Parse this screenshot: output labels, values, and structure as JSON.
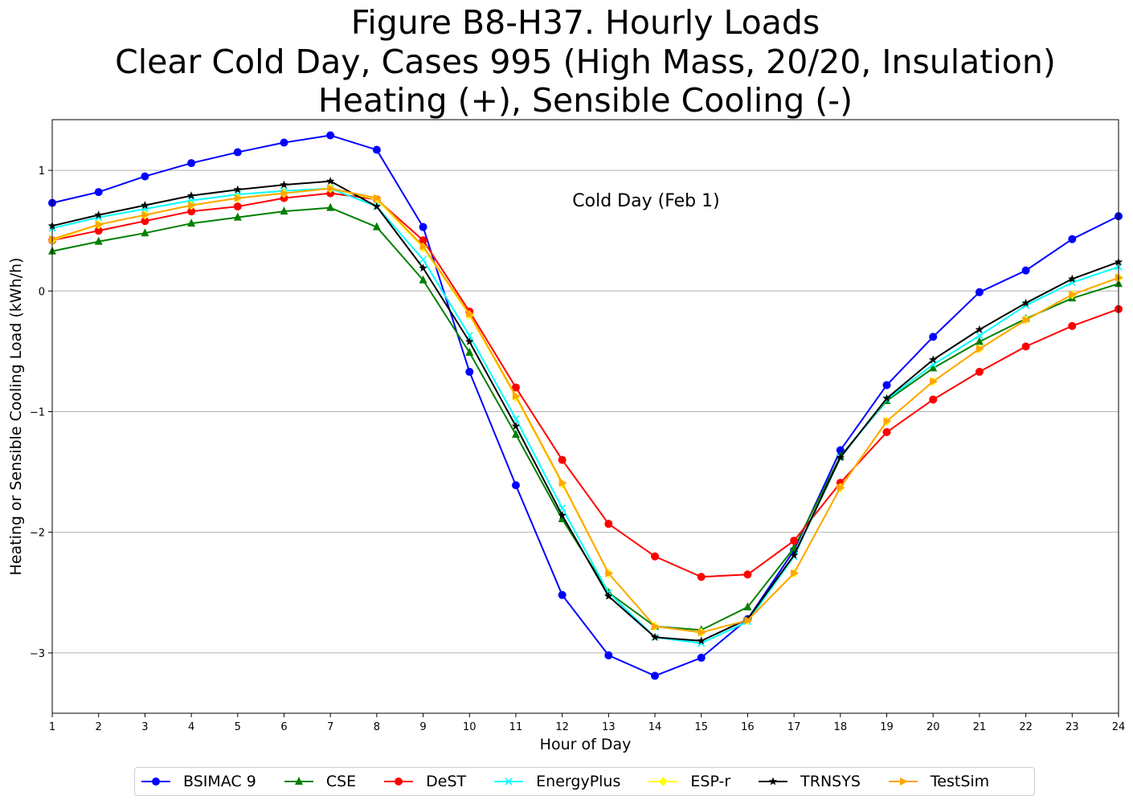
{
  "title_lines": [
    "Figure B8-H37. Hourly Loads",
    "Clear Cold Day, Cases 995 (High Mass, 20/20, Insulation)",
    "Heating (+), Sensible Cooling (-)"
  ],
  "chart_data": {
    "type": "line",
    "title": "Figure B8-H37. Hourly Loads\nClear Cold Day, Cases 995 (High Mass, 20/20, Insulation)\nHeating (+), Sensible Cooling (-)",
    "xlabel": "Hour of Day",
    "ylabel": "Heating or Sensible Cooling Load (kWh/h)",
    "annotation": "Cold Day (Feb 1)",
    "xlim": [
      1,
      24
    ],
    "ylim": [
      -3.5,
      1.42
    ],
    "x": [
      1,
      2,
      3,
      4,
      5,
      6,
      7,
      8,
      9,
      10,
      11,
      12,
      13,
      14,
      15,
      16,
      17,
      18,
      19,
      20,
      21,
      22,
      23,
      24
    ],
    "x_ticks": [
      "1",
      "2",
      "3",
      "4",
      "5",
      "6",
      "7",
      "8",
      "9",
      "10",
      "11",
      "12",
      "13",
      "14",
      "15",
      "16",
      "17",
      "18",
      "19",
      "20",
      "21",
      "22",
      "23",
      "24"
    ],
    "y_ticks": [
      1,
      0,
      -1,
      -2,
      -3
    ],
    "y_tick_labels": [
      "1",
      "0",
      "−1",
      "−2",
      "−3"
    ],
    "grid": "horizontal",
    "legend_position": "bottom-center",
    "series": [
      {
        "name": "BSIMAC 9",
        "color": "#0000ff",
        "marker": "circle",
        "values": [
          0.73,
          0.82,
          0.95,
          1.06,
          1.15,
          1.23,
          1.29,
          1.17,
          0.53,
          -0.67,
          -1.61,
          -2.52,
          -3.02,
          -3.19,
          -3.04,
          -2.72,
          -2.15,
          -1.32,
          -0.78,
          -0.38,
          -0.01,
          0.17,
          0.43,
          0.62
        ]
      },
      {
        "name": "CSE",
        "color": "#008000",
        "marker": "triangle",
        "values": [
          0.33,
          0.41,
          0.48,
          0.56,
          0.61,
          0.66,
          0.69,
          0.53,
          0.09,
          -0.51,
          -1.19,
          -1.89,
          -2.5,
          -2.78,
          -2.81,
          -2.62,
          -2.13,
          -1.37,
          -0.91,
          -0.64,
          -0.42,
          -0.23,
          -0.06,
          0.06
        ]
      },
      {
        "name": "DeST",
        "color": "#ff0000",
        "marker": "circle",
        "values": [
          0.42,
          0.5,
          0.58,
          0.66,
          0.7,
          0.77,
          0.81,
          0.76,
          0.42,
          -0.17,
          -0.8,
          -1.4,
          -1.93,
          -2.2,
          -2.37,
          -2.35,
          -2.07,
          -1.59,
          -1.17,
          -0.9,
          -0.67,
          -0.46,
          -0.29,
          -0.15
        ]
      },
      {
        "name": "EnergyPlus",
        "color": "#00ffff",
        "marker": "x",
        "values": [
          0.52,
          0.61,
          0.68,
          0.75,
          0.8,
          0.83,
          0.85,
          0.7,
          0.26,
          -0.37,
          -1.06,
          -1.8,
          -2.5,
          -2.87,
          -2.92,
          -2.74,
          -2.2,
          -1.38,
          -0.9,
          -0.61,
          -0.37,
          -0.12,
          0.07,
          0.2
        ]
      },
      {
        "name": "ESP-r",
        "color": "#ffff00",
        "marker": "diamond",
        "values": [
          0.42,
          0.55,
          0.63,
          0.71,
          0.77,
          0.81,
          0.85,
          0.76,
          0.36,
          -0.2,
          -0.88,
          -1.6,
          -2.34,
          -2.78,
          -2.83,
          -2.73,
          -2.34,
          -1.63,
          -1.08,
          -0.75,
          -0.48,
          -0.24,
          -0.03,
          0.11
        ]
      },
      {
        "name": "TRNSYS",
        "color": "#000000",
        "marker": "star",
        "values": [
          0.54,
          0.63,
          0.71,
          0.79,
          0.84,
          0.88,
          0.91,
          0.7,
          0.19,
          -0.42,
          -1.12,
          -1.86,
          -2.53,
          -2.87,
          -2.9,
          -2.72,
          -2.19,
          -1.38,
          -0.89,
          -0.57,
          -0.32,
          -0.1,
          0.1,
          0.24
        ]
      },
      {
        "name": "TestSim",
        "color": "#ffa500",
        "marker": "triangle-right",
        "values": [
          0.43,
          0.55,
          0.63,
          0.71,
          0.77,
          0.81,
          0.85,
          0.77,
          0.37,
          -0.19,
          -0.87,
          -1.59,
          -2.34,
          -2.78,
          -2.83,
          -2.73,
          -2.34,
          -1.63,
          -1.08,
          -0.75,
          -0.48,
          -0.24,
          -0.03,
          0.11
        ]
      }
    ]
  }
}
